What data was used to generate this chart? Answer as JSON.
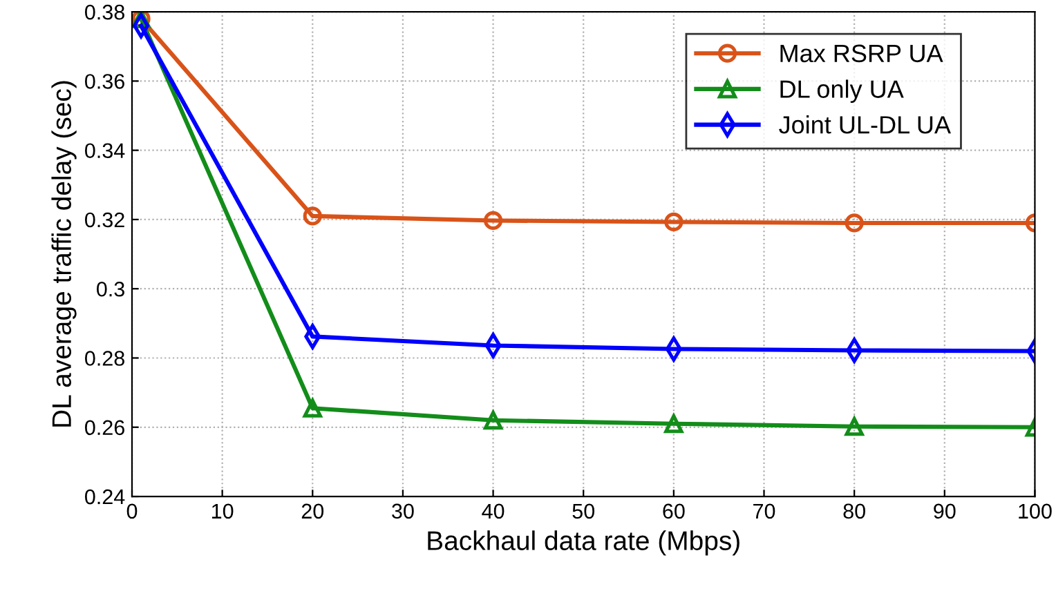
{
  "chart_data": {
    "type": "line",
    "xlabel": "Backhaul data rate (Mbps)",
    "ylabel": "DL average traffic delay (sec)",
    "x": [
      1,
      20,
      40,
      60,
      80,
      100
    ],
    "series": [
      {
        "name": "Max RSRP UA",
        "color": "#d95319",
        "marker": "circle",
        "values": [
          0.378,
          0.321,
          0.3197,
          0.3193,
          0.319,
          0.319
        ]
      },
      {
        "name": "DL only UA",
        "color": "#138d1a",
        "marker": "triangle",
        "values": [
          0.378,
          0.2655,
          0.262,
          0.261,
          0.2602,
          0.26
        ]
      },
      {
        "name": "Joint UL-DL UA",
        "color": "#0000ff",
        "marker": "diamond",
        "values": [
          0.376,
          0.2862,
          0.2836,
          0.2826,
          0.2822,
          0.282
        ]
      }
    ],
    "xlim": [
      0,
      100
    ],
    "xticks": [
      0,
      10,
      20,
      30,
      40,
      50,
      60,
      70,
      80,
      90,
      100
    ],
    "ylim": [
      0.24,
      0.38
    ],
    "yticks": [
      0.24,
      0.26,
      0.28,
      0.3,
      0.32,
      0.34,
      0.36,
      0.38
    ],
    "grid": true,
    "legend": "top right",
    "line_style": "solid"
  }
}
